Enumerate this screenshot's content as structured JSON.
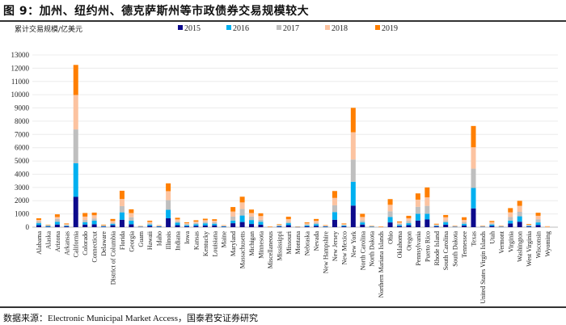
{
  "title": "图 9：加州、纽约州、德克萨斯州等市政债券交易规模较大",
  "source": "数据来源：Electronic Municipal Market Access，国泰君安证券研究",
  "chart_data": {
    "type": "bar",
    "stacked": true,
    "ylabel": "累计交易规模/亿美元",
    "xlabel": "",
    "ylim": [
      0,
      13000
    ],
    "yticks": [
      0,
      1000,
      2000,
      3000,
      4000,
      5000,
      6000,
      7000,
      8000,
      9000,
      10000,
      11000,
      12000,
      13000
    ],
    "grid": true,
    "legend_position": "top",
    "categories": [
      "Alabama",
      "Alaska",
      "Arizona",
      "Arkansas",
      "California",
      "Colorado",
      "Connecticut",
      "Delaware",
      "District of Columbia",
      "Florida",
      "Georgia",
      "Guam",
      "Hawaii",
      "Idaho",
      "Illinois",
      "Indiana",
      "Iowa",
      "Kansas",
      "Kentucky",
      "Louisiana",
      "Maine",
      "Maryland",
      "Massachusetts",
      "Michigan",
      "Minnesota",
      "Miscellaneous",
      "Mississippi",
      "Missouri",
      "Montana",
      "Nebraska",
      "Nevada",
      "New Hampshire",
      "New Jersey",
      "New Mexico",
      "New York",
      "North Carolina",
      "North Dakota",
      "Northern Mariana Islands",
      "Ohio",
      "Oklahoma",
      "Oregon",
      "Pennsylvania",
      "Puerto Rico",
      "Rhode Island",
      "South Carolina",
      "South Dakota",
      "Tennessee",
      "Texas",
      "United States Virgin Islands",
      "Utah",
      "Vermont",
      "Virginia",
      "Washington",
      "West Virginia",
      "Wisconsin",
      "Wyoming"
    ],
    "series": [
      {
        "name": "2015",
        "color": "#0d0a8c",
        "values": [
          150,
          40,
          200,
          60,
          2290,
          200,
          220,
          40,
          150,
          560,
          220,
          20,
          100,
          30,
          670,
          150,
          70,
          100,
          130,
          140,
          30,
          300,
          390,
          240,
          190,
          0,
          50,
          150,
          10,
          60,
          100,
          30,
          560,
          60,
          1630,
          200,
          20,
          0,
          360,
          80,
          150,
          500,
          580,
          60,
          190,
          20,
          130,
          1420,
          20,
          100,
          20,
          280,
          410,
          50,
          170,
          0
        ]
      },
      {
        "name": "2016",
        "color": "#00b0f0",
        "values": [
          150,
          50,
          210,
          50,
          2540,
          170,
          270,
          40,
          90,
          560,
          270,
          20,
          100,
          40,
          640,
          190,
          80,
          120,
          160,
          120,
          40,
          200,
          490,
          300,
          220,
          0,
          40,
          150,
          10,
          80,
          130,
          30,
          580,
          60,
          1800,
          160,
          30,
          0,
          410,
          90,
          150,
          510,
          430,
          50,
          180,
          20,
          120,
          1540,
          20,
          100,
          20,
          220,
          410,
          50,
          190,
          0
        ]
      },
      {
        "name": "2017",
        "color": "#bfbfbf",
        "values": [
          150,
          40,
          210,
          60,
          2550,
          170,
          170,
          40,
          100,
          470,
          260,
          20,
          100,
          30,
          730,
          100,
          80,
          100,
          110,
          110,
          30,
          300,
          490,
          260,
          150,
          0,
          40,
          110,
          10,
          70,
          100,
          30,
          510,
          50,
          1680,
          150,
          20,
          0,
          430,
          90,
          170,
          530,
          600,
          50,
          130,
          20,
          130,
          1460,
          20,
          80,
          20,
          270,
          340,
          40,
          240,
          0
        ]
      },
      {
        "name": "2018",
        "color": "#fcc3a0",
        "values": [
          100,
          30,
          150,
          60,
          2600,
          260,
          240,
          30,
          130,
          540,
          320,
          20,
          100,
          30,
          680,
          150,
          80,
          100,
          130,
          120,
          30,
          380,
          500,
          270,
          280,
          30,
          50,
          190,
          20,
          80,
          150,
          30,
          560,
          60,
          2060,
          260,
          20,
          30,
          490,
          100,
          200,
          540,
          640,
          50,
          250,
          30,
          170,
          1610,
          30,
          100,
          30,
          350,
          450,
          50,
          260,
          40
        ]
      },
      {
        "name": "2019",
        "color": "#ff7f00",
        "values": [
          120,
          30,
          200,
          50,
          2270,
          270,
          200,
          40,
          150,
          620,
          280,
          10,
          90,
          20,
          590,
          120,
          60,
          100,
          110,
          110,
          20,
          340,
          430,
          260,
          210,
          30,
          40,
          190,
          10,
          70,
          140,
          30,
          520,
          50,
          1840,
          240,
          20,
          30,
          430,
          70,
          190,
          470,
          750,
          50,
          170,
          20,
          200,
          1610,
          20,
          90,
          20,
          320,
          380,
          50,
          230,
          30
        ]
      }
    ]
  }
}
